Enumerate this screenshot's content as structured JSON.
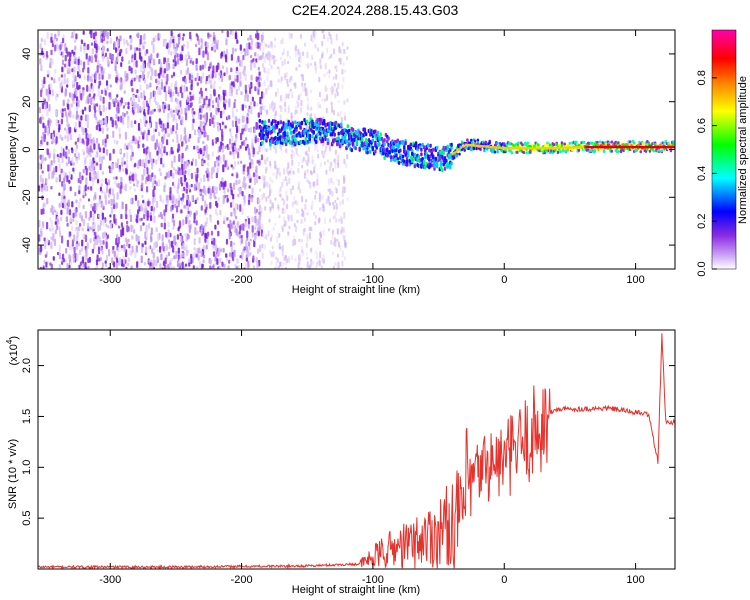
{
  "title": "C2E4.2024.288.15.43.G03",
  "chart_data": [
    {
      "type": "heatmap",
      "xlabel": "Height of straight line (km)",
      "ylabel": "Frequency (Hz)",
      "xlim": [
        -355,
        130
      ],
      "ylim": [
        -50,
        50
      ],
      "xticks": [
        -300,
        -200,
        -100,
        0,
        100
      ],
      "yticks": [
        -40,
        -20,
        0,
        20,
        40
      ],
      "colorbar": {
        "label": "Normalized spectral amplitude",
        "range": [
          0,
          1
        ],
        "ticks": [
          0.0,
          0.2,
          0.4,
          0.6,
          0.8
        ],
        "colors": [
          "#ffffff",
          "#8b2be2",
          "#0000ff",
          "#00ffff",
          "#00ff00",
          "#ffff00",
          "#ff8000",
          "#ff0000",
          "#ff00aa"
        ]
      },
      "ridge_center_hz": [
        {
          "x": -185,
          "y": 7
        },
        {
          "x": -160,
          "y": 7
        },
        {
          "x": -140,
          "y": 8
        },
        {
          "x": -120,
          "y": 5
        },
        {
          "x": -100,
          "y": 3
        },
        {
          "x": -80,
          "y": -1
        },
        {
          "x": -60,
          "y": -3
        },
        {
          "x": -45,
          "y": -4
        },
        {
          "x": -30,
          "y": 2
        },
        {
          "x": -10,
          "y": 1
        },
        {
          "x": 0,
          "y": 0.5
        },
        {
          "x": 30,
          "y": 0.5
        },
        {
          "x": 60,
          "y": 1
        },
        {
          "x": 90,
          "y": 1
        },
        {
          "x": 120,
          "y": 1
        }
      ]
    },
    {
      "type": "line",
      "xlabel": "Height of straight line (km)",
      "ylabel": "SNR (10 * v/v)",
      "yscale_label": "(x10",
      "yscale_exp": "4",
      "xlim": [
        -355,
        130
      ],
      "ylim": [
        0,
        2.35
      ],
      "xticks": [
        -300,
        -200,
        -100,
        0,
        100
      ],
      "yticks": [
        0.5,
        1.0,
        1.5,
        2.0
      ],
      "ytick_labels": [
        "0.5",
        "1.0",
        "1.5",
        "2.0"
      ],
      "series": [
        {
          "color": "#e8312b",
          "points": [
            {
              "x": -355,
              "y": 0.02
            },
            {
              "x": -250,
              "y": 0.02
            },
            {
              "x": -150,
              "y": 0.03
            },
            {
              "x": -110,
              "y": 0.05
            },
            {
              "x": -90,
              "y": 0.2
            },
            {
              "x": -70,
              "y": 0.28
            },
            {
              "x": -50,
              "y": 0.4
            },
            {
              "x": -35,
              "y": 0.55
            },
            {
              "x": -25,
              "y": 0.9
            },
            {
              "x": -15,
              "y": 1.05
            },
            {
              "x": 0,
              "y": 1.1
            },
            {
              "x": 20,
              "y": 1.35
            },
            {
              "x": 30,
              "y": 1.5
            },
            {
              "x": 40,
              "y": 1.57
            },
            {
              "x": 80,
              "y": 1.58
            },
            {
              "x": 110,
              "y": 1.52
            },
            {
              "x": 117,
              "y": 1.05
            },
            {
              "x": 120,
              "y": 2.3
            },
            {
              "x": 123,
              "y": 1.45
            },
            {
              "x": 130,
              "y": 1.44
            }
          ]
        }
      ]
    }
  ]
}
